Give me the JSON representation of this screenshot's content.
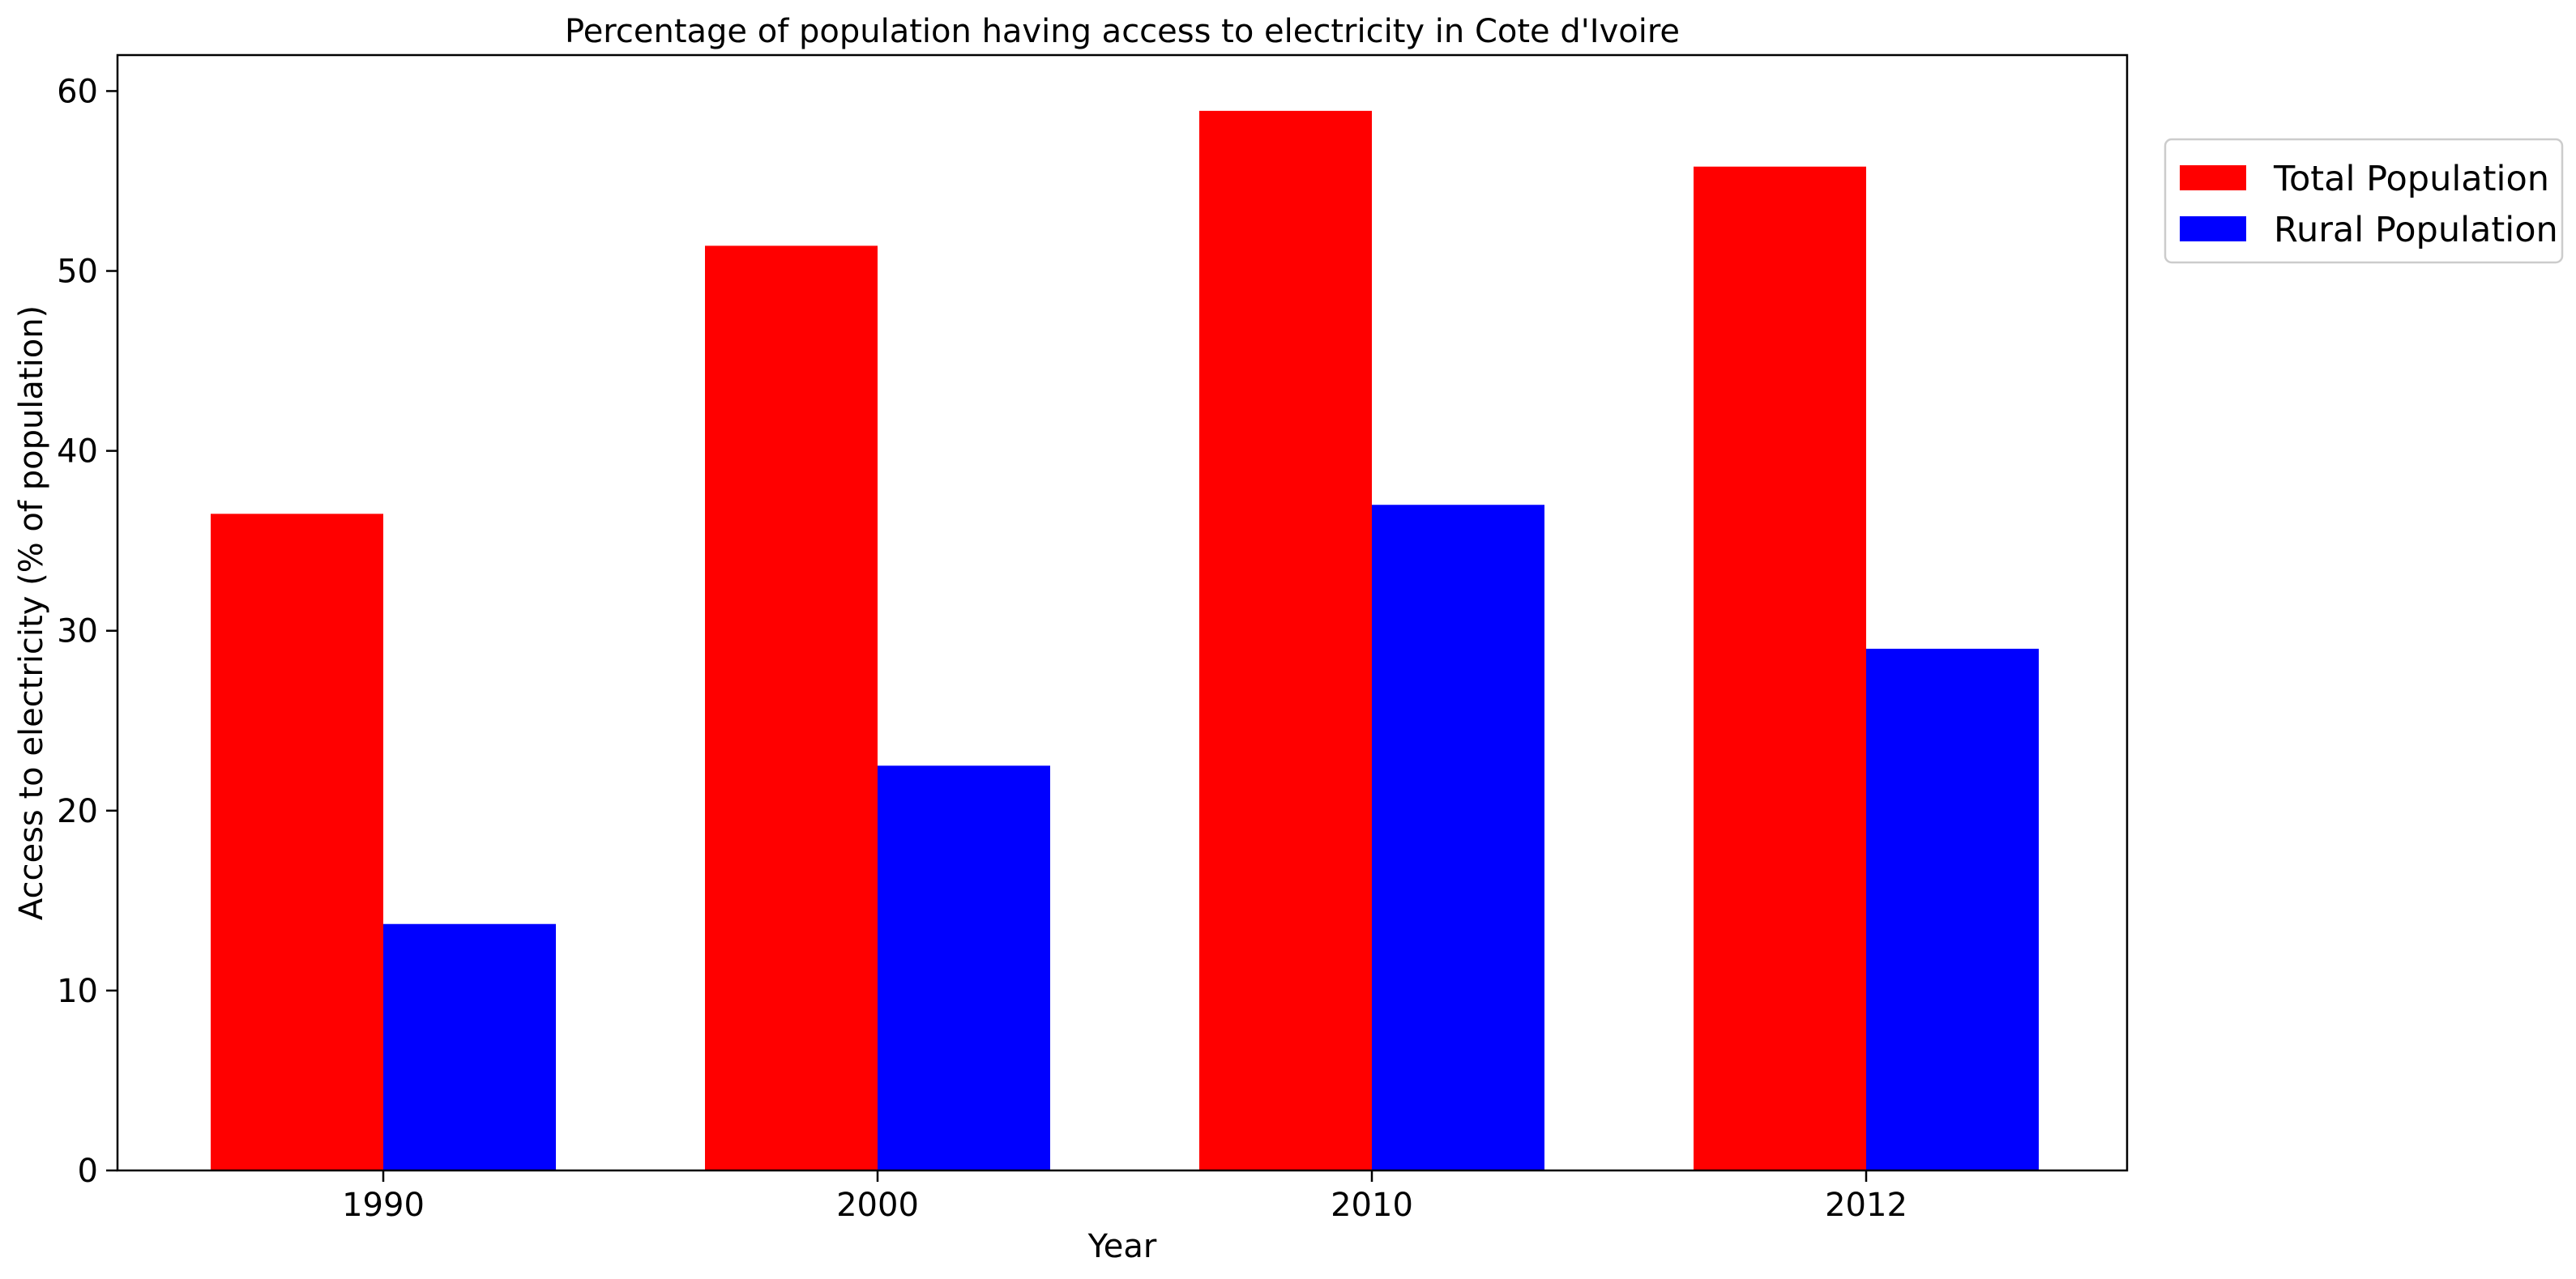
{
  "chart_data": {
    "type": "bar",
    "title": "Percentage of population having access to electricity in Cote d'Ivoire",
    "xlabel": "Year",
    "ylabel": "Access to electricity (% of population)",
    "categories": [
      "1990",
      "2000",
      "2010",
      "2012"
    ],
    "series": [
      {
        "name": "Total Population",
        "color": "#ff0000",
        "values": [
          36.5,
          51.4,
          58.9,
          55.8
        ]
      },
      {
        "name": "Rural Population",
        "color": "#0000ff",
        "values": [
          13.7,
          22.5,
          37.0,
          29.0
        ]
      }
    ],
    "ylim": [
      0,
      62
    ],
    "yticks": [
      0,
      10,
      20,
      30,
      40,
      50,
      60
    ],
    "grid": false,
    "legend_position": "outside-right-top"
  }
}
